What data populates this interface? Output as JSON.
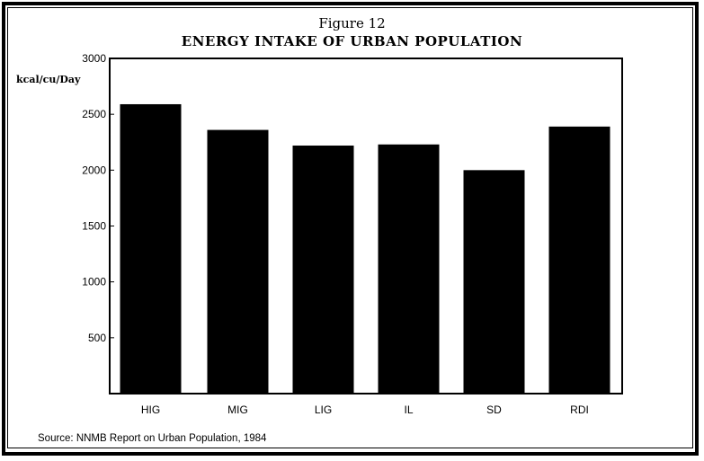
{
  "figure": {
    "number_label": "Figure 12",
    "title": "ENERGY INTAKE OF URBAN POPULATION",
    "unit_label": "kcal/cu/Day",
    "source": "Source: NNMB Report on Urban Population, 1984"
  },
  "chart_data": {
    "type": "bar",
    "title": "ENERGY INTAKE OF URBAN POPULATION",
    "subtitle": "Figure 12",
    "xlabel": "",
    "ylabel": "kcal/cu/Day",
    "categories": [
      "HIG",
      "MIG",
      "LIG",
      "IL",
      "SD",
      "RDI"
    ],
    "values": [
      2590,
      2360,
      2220,
      2230,
      2000,
      2390
    ],
    "ylim": [
      0,
      3000
    ],
    "yticks": [
      500,
      1000,
      1500,
      2000,
      2500,
      3000
    ],
    "grid": false,
    "legend": "none",
    "bar_color": "#000000",
    "annotation": "Source: NNMB Report on Urban Population, 1984"
  }
}
